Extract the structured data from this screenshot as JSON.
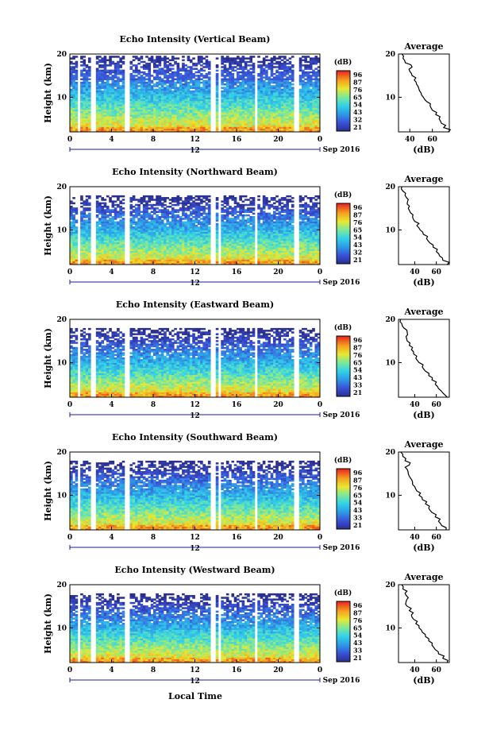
{
  "date_label": "Sep 2016",
  "x_axis_label": "Local Time",
  "chart_data": [
    {
      "type": "heatmap",
      "title": "Echo Intensity (Vertical Beam)",
      "ylabel": "Height (km)",
      "xlim": [
        0,
        24
      ],
      "ylim": [
        2,
        20
      ],
      "x_ticks": [
        "0",
        "4",
        "8",
        "12",
        "16",
        "20",
        "0"
      ],
      "y_ticks": [
        "10",
        "20"
      ],
      "day_label": "12",
      "colorbar": {
        "title": "(dB)",
        "ticks": [
          "96",
          "87",
          "76",
          "65",
          "54",
          "43",
          "32",
          "21"
        ]
      },
      "gaps_hours": [
        [
          0.7,
          1.1
        ],
        [
          2.1,
          2.4
        ],
        [
          5.2,
          5.8
        ],
        [
          13.6,
          14.0
        ],
        [
          14.3,
          14.5
        ],
        [
          17.7,
          18.1
        ],
        [
          21.6,
          22.1
        ]
      ],
      "profile": {
        "title": "Average",
        "xlabel": "(dB)",
        "x_ticks": [
          "40",
          "60"
        ],
        "y_ticks": [
          "10",
          "20"
        ],
        "xlim": [
          30,
          75
        ],
        "height_km": [
          2,
          3,
          4,
          5,
          6,
          7,
          8,
          9,
          10,
          11,
          12,
          13,
          14,
          15,
          16,
          17,
          18,
          19,
          20
        ],
        "intensity_db": [
          74,
          70,
          68,
          66,
          63,
          60,
          58,
          55,
          52,
          50,
          48,
          46,
          44,
          42,
          40,
          42,
          36,
          34,
          33
        ]
      }
    },
    {
      "type": "heatmap",
      "title": "Echo Intensity (Northward Beam)",
      "ylabel": "Height (km)",
      "xlim": [
        0,
        24
      ],
      "ylim": [
        2,
        20
      ],
      "x_ticks": [
        "0",
        "4",
        "8",
        "12",
        "16",
        "20",
        "0"
      ],
      "y_ticks": [
        "10",
        "20"
      ],
      "day_label": "12",
      "colorbar": {
        "title": "(dB)",
        "ticks": [
          "96",
          "87",
          "76",
          "65",
          "54",
          "43",
          "32",
          "21"
        ]
      },
      "gaps_hours": [
        [
          0.7,
          1.1
        ],
        [
          2.1,
          2.4
        ],
        [
          5.2,
          5.8
        ],
        [
          13.6,
          14.0
        ],
        [
          14.3,
          14.5
        ],
        [
          17.7,
          18.1
        ],
        [
          21.6,
          22.1
        ]
      ],
      "profile": {
        "title": "Average",
        "xlabel": "(dB)",
        "x_ticks": [
          "40",
          "60"
        ],
        "y_ticks": [
          "10",
          "20"
        ],
        "xlim": [
          25,
          72
        ],
        "height_km": [
          2,
          3,
          4,
          5,
          6,
          7,
          8,
          9,
          10,
          11,
          12,
          13,
          14,
          15,
          16,
          17,
          18,
          19,
          20
        ],
        "intensity_db": [
          70,
          66,
          63,
          60,
          57,
          54,
          51,
          48,
          45,
          42,
          40,
          38,
          36,
          34,
          33,
          34,
          31,
          29,
          28
        ]
      }
    },
    {
      "type": "heatmap",
      "title": "Echo Intensity (Eastward Beam)",
      "ylabel": "Height (km)",
      "xlim": [
        0,
        24
      ],
      "ylim": [
        2,
        20
      ],
      "x_ticks": [
        "0",
        "4",
        "8",
        "12",
        "16",
        "20",
        "0"
      ],
      "y_ticks": [
        "10",
        "20"
      ],
      "day_label": "12",
      "colorbar": {
        "title": "(dB)",
        "ticks": [
          "96",
          "87",
          "76",
          "65",
          "54",
          "43",
          "33",
          "21"
        ]
      },
      "gaps_hours": [
        [
          0.7,
          1.1
        ],
        [
          2.1,
          2.4
        ],
        [
          5.2,
          5.8
        ],
        [
          13.6,
          14.0
        ],
        [
          14.3,
          14.5
        ],
        [
          17.7,
          18.1
        ],
        [
          21.6,
          22.1
        ]
      ],
      "profile": {
        "title": "Average",
        "xlabel": "(dB)",
        "x_ticks": [
          "40",
          "60"
        ],
        "y_ticks": [
          "10",
          "20"
        ],
        "xlim": [
          25,
          72
        ],
        "height_km": [
          2,
          3,
          4,
          5,
          6,
          7,
          8,
          9,
          10,
          11,
          12,
          13,
          14,
          15,
          16,
          17,
          18,
          19,
          20
        ],
        "intensity_db": [
          70,
          66,
          62,
          59,
          56,
          53,
          50,
          47,
          44,
          41,
          39,
          37,
          35,
          33,
          32,
          33,
          30,
          28,
          27
        ]
      }
    },
    {
      "type": "heatmap",
      "title": "Echo Intensity (Southward Beam)",
      "ylabel": "Height (km)",
      "xlim": [
        0,
        24
      ],
      "ylim": [
        2,
        20
      ],
      "x_ticks": [
        "0",
        "4",
        "8",
        "12",
        "16",
        "20",
        "0"
      ],
      "y_ticks": [
        "10",
        "20"
      ],
      "day_label": "12",
      "colorbar": {
        "title": "(dB)",
        "ticks": [
          "96",
          "87",
          "76",
          "65",
          "54",
          "43",
          "33",
          "21"
        ]
      },
      "gaps_hours": [
        [
          0.7,
          1.1
        ],
        [
          2.1,
          2.4
        ],
        [
          5.2,
          5.8
        ],
        [
          13.6,
          14.0
        ],
        [
          14.3,
          14.5
        ],
        [
          17.7,
          18.1
        ],
        [
          21.6,
          22.1
        ]
      ],
      "profile": {
        "title": "Average",
        "xlabel": "(dB)",
        "x_ticks": [
          "40",
          "60"
        ],
        "y_ticks": [
          "10",
          "20"
        ],
        "xlim": [
          25,
          72
        ],
        "height_km": [
          2,
          3,
          4,
          5,
          6,
          7,
          8,
          9,
          10,
          11,
          12,
          13,
          14,
          15,
          16,
          17,
          18,
          19,
          20
        ],
        "intensity_db": [
          69,
          65,
          62,
          59,
          56,
          53,
          50,
          47,
          44,
          42,
          40,
          38,
          36,
          34,
          33,
          35,
          31,
          29,
          27
        ]
      }
    },
    {
      "type": "heatmap",
      "title": "Echo Intensity (Westward Beam)",
      "ylabel": "Height (km)",
      "xlim": [
        0,
        24
      ],
      "ylim": [
        2,
        20
      ],
      "x_ticks": [
        "0",
        "4",
        "8",
        "12",
        "16",
        "20",
        "0"
      ],
      "y_ticks": [
        "10",
        "20"
      ],
      "day_label": "12",
      "colorbar": {
        "title": "(dB)",
        "ticks": [
          "96",
          "87",
          "76",
          "65",
          "54",
          "43",
          "33",
          "21"
        ]
      },
      "gaps_hours": [
        [
          0.7,
          1.1
        ],
        [
          2.1,
          2.4
        ],
        [
          5.2,
          5.8
        ],
        [
          13.6,
          14.0
        ],
        [
          14.3,
          14.5
        ],
        [
          17.7,
          18.1
        ],
        [
          21.6,
          22.1
        ]
      ],
      "profile": {
        "title": "Average",
        "xlabel": "(dB)",
        "x_ticks": [
          "40",
          "60"
        ],
        "y_ticks": [
          "10",
          "20"
        ],
        "xlim": [
          25,
          72
        ],
        "height_km": [
          2,
          3,
          4,
          5,
          6,
          7,
          8,
          9,
          10,
          11,
          12,
          13,
          14,
          15,
          16,
          17,
          18,
          19,
          20
        ],
        "intensity_db": [
          70,
          66,
          62,
          59,
          56,
          53,
          50,
          47,
          44,
          41,
          39,
          37,
          35,
          33,
          32,
          34,
          31,
          29,
          28
        ]
      }
    }
  ]
}
